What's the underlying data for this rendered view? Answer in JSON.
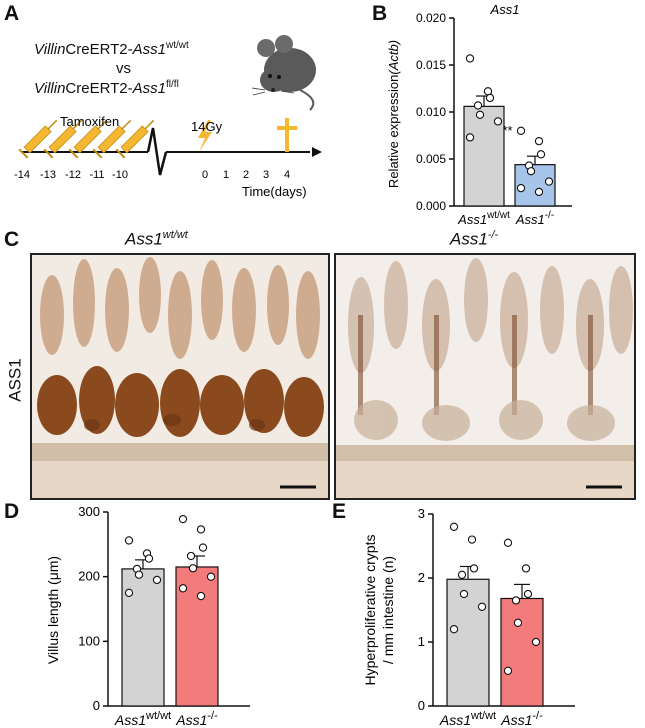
{
  "panels": {
    "a": "A",
    "b": "B",
    "c": "C",
    "d": "D",
    "e": "E"
  },
  "panel_a": {
    "line1_italic": "Villin",
    "line1_rest": "CreERT2-",
    "line1_gene": "Ass1",
    "line1_sup": "wt/wt",
    "vs": "vs",
    "line2_italic": "Villin",
    "line2_rest": "CreERT2-",
    "line2_gene": "Ass1",
    "line2_sup": "fl/fl",
    "tamoxifen": "Tamoxifen",
    "irradiation": "14Gy",
    "ticks_pre": [
      "-14",
      "-13",
      "-12",
      "-11",
      "-10"
    ],
    "ticks_post": [
      "0",
      "1",
      "2",
      "3",
      "4"
    ],
    "time_label": "Time(days)",
    "colors": {
      "syringe": "#f5b731",
      "bolt": "#f5b731",
      "cross": "#f5b731",
      "mouse": "#5a5a5a"
    }
  },
  "panel_c": {
    "left_title": "Ass1",
    "left_sup": "wt/wt",
    "right_title": "Ass1",
    "right_sup": "-/-",
    "row_label": "ASS1"
  },
  "chart_data": [
    {
      "id": "B",
      "type": "bar",
      "title": "Ass1",
      "ylabel_pre": "Relative expression",
      "ylabel_it": "(Actb)",
      "categories": [
        "Ass1",
        "Ass1"
      ],
      "category_sups": [
        "wt/wt",
        "-/-"
      ],
      "values": [
        0.0106,
        0.0044
      ],
      "errors": [
        0.0011,
        0.0009
      ],
      "points": [
        [
          0.0157,
          0.0122,
          0.0115,
          0.0107,
          0.0097,
          0.009,
          0.0073
        ],
        [
          0.008,
          0.0069,
          0.0055,
          0.0043,
          0.0037,
          0.0026,
          0.0019,
          0.0015
        ]
      ],
      "ylim": [
        0,
        0.02
      ],
      "yticks": [
        "0.000",
        "0.005",
        "0.010",
        "0.015",
        "0.020"
      ],
      "annotation": "***",
      "colors": [
        "#d3d3d3",
        "#a6c5e8"
      ]
    },
    {
      "id": "D",
      "type": "bar",
      "ylabel": "Villus length (μm)",
      "categories": [
        "Ass1",
        "Ass1"
      ],
      "category_sups": [
        "wt/wt",
        "-/-"
      ],
      "values": [
        212,
        215
      ],
      "errors": [
        14,
        17
      ],
      "points": [
        [
          256,
          236,
          228,
          212,
          203,
          195,
          175
        ],
        [
          289,
          273,
          245,
          232,
          213,
          200,
          182,
          170
        ]
      ],
      "ylim": [
        0,
        300
      ],
      "yticks": [
        "0",
        "100",
        "200",
        "300"
      ],
      "colors": [
        "#d3d3d3",
        "#f47b7b"
      ]
    },
    {
      "id": "E",
      "type": "bar",
      "ylabel_line1": "Hyperproliferative crypts",
      "ylabel_line2": "/ mm intestine (n)",
      "categories": [
        "Ass1",
        "Ass1"
      ],
      "category_sups": [
        "wt/wt",
        "-/-"
      ],
      "values": [
        1.98,
        1.68
      ],
      "errors": [
        0.2,
        0.22
      ],
      "points": [
        [
          2.8,
          2.6,
          2.15,
          2.05,
          1.75,
          1.55,
          1.2
        ],
        [
          2.55,
          2.15,
          1.75,
          1.65,
          1.3,
          1.0,
          0.55
        ]
      ],
      "ylim": [
        0,
        3
      ],
      "yticks": [
        "0",
        "1",
        "2",
        "3"
      ],
      "colors": [
        "#d3d3d3",
        "#f47b7b"
      ]
    }
  ]
}
